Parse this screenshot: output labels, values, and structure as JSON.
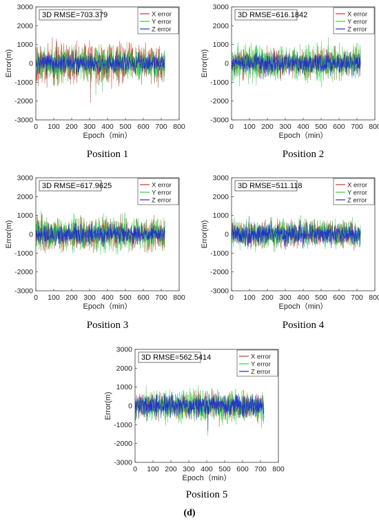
{
  "figure_label": "(d)",
  "colors": {
    "x_error": "#c0392b",
    "y_error": "#2ecc40",
    "z_error": "#1f2bd6"
  },
  "chart_data": [
    {
      "type": "line",
      "caption": "Position 1",
      "annotation": "3D RMSE=703.379",
      "xlabel": "Epoch（min）",
      "ylabel": "Error(m)",
      "xlim": [
        0,
        800
      ],
      "ylim": [
        -3000,
        3000
      ],
      "x_ticks": [
        0,
        100,
        200,
        300,
        400,
        500,
        600,
        700,
        800
      ],
      "y_ticks": [
        -3000,
        -2000,
        -1000,
        0,
        1000,
        2000,
        3000
      ],
      "legend_position": "top-right",
      "epochs": 720,
      "series": [
        {
          "name": "X error",
          "amplitude": 1150
        },
        {
          "name": "Y error",
          "amplitude": 950
        },
        {
          "name": "Z error",
          "amplitude": 560
        }
      ]
    },
    {
      "type": "line",
      "caption": "Position 2",
      "annotation": "3D RMSE=616.1842",
      "xlabel": "Epoch（min）",
      "ylabel": "Error(m)",
      "xlim": [
        0,
        800
      ],
      "ylim": [
        -3000,
        3000
      ],
      "x_ticks": [
        0,
        100,
        200,
        300,
        400,
        500,
        600,
        700,
        800
      ],
      "y_ticks": [
        -3000,
        -2000,
        -1000,
        0,
        1000,
        2000,
        3000
      ],
      "legend_position": "top-right",
      "epochs": 720,
      "series": [
        {
          "name": "X error",
          "amplitude": 800
        },
        {
          "name": "Y error",
          "amplitude": 1000
        },
        {
          "name": "Z error",
          "amplitude": 600
        }
      ]
    },
    {
      "type": "line",
      "caption": "Position 3",
      "annotation": "3D RMSE=617.9625",
      "xlabel": "Epoch（min）",
      "ylabel": "Error(m)",
      "xlim": [
        0,
        800
      ],
      "ylim": [
        -3000,
        3000
      ],
      "x_ticks": [
        0,
        100,
        200,
        300,
        400,
        500,
        600,
        700,
        800
      ],
      "y_ticks": [
        -3000,
        -2000,
        -1000,
        0,
        1000,
        2000,
        3000
      ],
      "legend_position": "top-right",
      "epochs": 720,
      "series": [
        {
          "name": "X error",
          "amplitude": 850
        },
        {
          "name": "Y error",
          "amplitude": 1000
        },
        {
          "name": "Z error",
          "amplitude": 580
        }
      ]
    },
    {
      "type": "line",
      "caption": "Position 4",
      "annotation": "3D RMSE=511.118",
      "xlabel": "Epoch（min）",
      "ylabel": "Error(m)",
      "xlim": [
        0,
        800
      ],
      "ylim": [
        -3000,
        3000
      ],
      "x_ticks": [
        0,
        100,
        200,
        300,
        400,
        500,
        600,
        700,
        800
      ],
      "y_ticks": [
        -3000,
        -2000,
        -1000,
        0,
        1000,
        2000,
        3000
      ],
      "legend_position": "top-right",
      "epochs": 720,
      "series": [
        {
          "name": "X error",
          "amplitude": 700
        },
        {
          "name": "Y error",
          "amplitude": 800
        },
        {
          "name": "Z error",
          "amplitude": 620
        }
      ]
    },
    {
      "type": "line",
      "caption": "Position 5",
      "annotation": "3D RMSE=562.5414",
      "xlabel": "Epoch（min）",
      "ylabel": "Error(m)",
      "xlim": [
        0,
        800
      ],
      "ylim": [
        -3000,
        3000
      ],
      "x_ticks": [
        0,
        100,
        200,
        300,
        400,
        500,
        600,
        700,
        800
      ],
      "y_ticks": [
        -3000,
        -2000,
        -1000,
        0,
        1000,
        2000,
        3000
      ],
      "legend_position": "top-right",
      "epochs": 720,
      "series": [
        {
          "name": "X error",
          "amplitude": 750
        },
        {
          "name": "Y error",
          "amplitude": 900
        },
        {
          "name": "Z error",
          "amplitude": 650
        }
      ]
    }
  ]
}
